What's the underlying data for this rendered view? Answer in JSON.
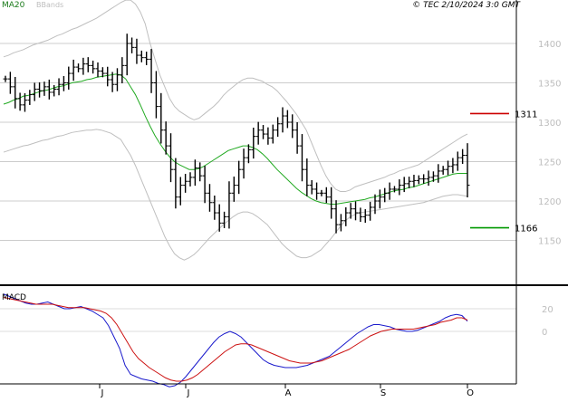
{
  "header": {
    "ma_label": "MA20",
    "bb_label": "BBands",
    "copyright": "© TEC 2/10/2024 3:0 GMT"
  },
  "colors": {
    "price_bar": "#000000",
    "ma20": "#22aa22",
    "bbands": "#bfbfbf",
    "grid": "#cccccc",
    "resistance": "#cc0000",
    "support": "#009900",
    "macd_line": "#1a1acc",
    "signal_line": "#cc1111"
  },
  "chart_data": [
    {
      "type": "ohlc",
      "y_ticks": [
        "1400",
        "1350",
        "1300",
        "1250",
        "1200",
        "1150"
      ],
      "ylim": [
        1100,
        1450
      ],
      "x_ticks": [
        "J",
        "J",
        "A",
        "S",
        "O"
      ],
      "levels": [
        {
          "label": "1311",
          "value": 1311,
          "color": "#cc0000"
        },
        {
          "label": "1166",
          "value": 1166,
          "color": "#009900"
        }
      ],
      "series": [
        {
          "name": "MA20",
          "values": [
            1323,
            1325,
            1328,
            1330,
            1333,
            1334,
            1336,
            1338,
            1340,
            1341,
            1343,
            1345,
            1346,
            1348,
            1350,
            1351,
            1352,
            1354,
            1355,
            1357,
            1358,
            1359,
            1360,
            1361,
            1360,
            1355,
            1345,
            1335,
            1322,
            1308,
            1295,
            1283,
            1273,
            1264,
            1256,
            1250,
            1246,
            1243,
            1240,
            1240,
            1241,
            1244,
            1248,
            1252,
            1256,
            1260,
            1264,
            1266,
            1268,
            1270,
            1270,
            1268,
            1265,
            1260,
            1254,
            1247,
            1240,
            1234,
            1228,
            1222,
            1216,
            1211,
            1207,
            1203,
            1200,
            1198,
            1197,
            1196,
            1196,
            1197,
            1198,
            1199,
            1200,
            1201,
            1202,
            1204,
            1205,
            1207,
            1209,
            1211,
            1213,
            1214,
            1215,
            1217,
            1218,
            1220,
            1222,
            1224,
            1226,
            1228,
            1230,
            1232,
            1234,
            1235,
            1235,
            1235
          ]
        },
        {
          "name": "BBands",
          "values": [
            {
              "upper": [
                1383,
                1385,
                1388,
                1390,
                1392,
                1395,
                1398,
                1400,
                1402,
                1404,
                1407,
                1410,
                1412,
                1415,
                1418,
                1420,
                1423,
                1426,
                1429,
                1432,
                1436,
                1440,
                1444,
                1448,
                1452,
                1455,
                1455,
                1450,
                1440,
                1425,
                1400,
                1380,
                1360,
                1345,
                1330,
                1320,
                1314,
                1310,
                1306,
                1303,
                1305,
                1310,
                1315,
                1320,
                1326,
                1334,
                1340,
                1345,
                1350,
                1354,
                1356,
                1356,
                1354,
                1352,
                1348,
                1345,
                1340,
                1333,
                1326,
                1318,
                1310,
                1300,
                1290,
                1275,
                1260,
                1245,
                1232,
                1222,
                1215,
                1212,
                1212,
                1214,
                1218,
                1220,
                1222,
                1224,
                1226,
                1228,
                1230,
                1233,
                1235,
                1238,
                1240,
                1242,
                1244,
                1246,
                1250,
                1254,
                1258,
                1262,
                1266,
                1270,
                1274,
                1278,
                1282,
                1285
              ]
            },
            {
              "lower": [
                1262,
                1264,
                1266,
                1268,
                1270,
                1271,
                1273,
                1275,
                1277,
                1278,
                1280,
                1282,
                1283,
                1285,
                1287,
                1288,
                1289,
                1290,
                1290,
                1291,
                1290,
                1288,
                1286,
                1282,
                1278,
                1268,
                1258,
                1245,
                1230,
                1215,
                1200,
                1185,
                1170,
                1155,
                1143,
                1133,
                1128,
                1125,
                1128,
                1132,
                1138,
                1145,
                1152,
                1158,
                1164,
                1170,
                1175,
                1180,
                1184,
                1186,
                1186,
                1184,
                1180,
                1175,
                1170,
                1162,
                1154,
                1146,
                1140,
                1135,
                1130,
                1128,
                1128,
                1130,
                1134,
                1138,
                1145,
                1152,
                1160,
                1168,
                1175,
                1180,
                1183,
                1185,
                1186,
                1187,
                1188,
                1189,
                1190,
                1191,
                1192,
                1193,
                1194,
                1195,
                1196,
                1197,
                1198,
                1200,
                1202,
                1204,
                1206,
                1207,
                1208,
                1208,
                1207,
                1206
              ]
            }
          ]
        },
        {
          "name": "Price",
          "values": [
            1355,
            1345,
            1330,
            1322,
            1328,
            1335,
            1342,
            1340,
            1345,
            1338,
            1342,
            1348,
            1350,
            1362,
            1370,
            1368,
            1374,
            1372,
            1368,
            1365,
            1362,
            1354,
            1348,
            1360,
            1372,
            1400,
            1395,
            1385,
            1382,
            1380,
            1350,
            1320,
            1290,
            1270,
            1240,
            1205,
            1220,
            1225,
            1230,
            1242,
            1232,
            1210,
            1198,
            1185,
            1172,
            1180,
            1210,
            1220,
            1240,
            1255,
            1265,
            1282,
            1290,
            1285,
            1280,
            1290,
            1298,
            1308,
            1300,
            1290,
            1270,
            1240,
            1220,
            1215,
            1210,
            1210,
            1205,
            1190,
            1170,
            1175,
            1185,
            1190,
            1185,
            1180,
            1182,
            1192,
            1200,
            1205,
            1210,
            1215,
            1215,
            1220,
            1222,
            1225,
            1226,
            1228,
            1228,
            1230,
            1232,
            1238,
            1240,
            1244,
            1246,
            1255,
            1258,
            1220
          ]
        }
      ]
    },
    {
      "type": "line",
      "title": "MACD",
      "y_ticks": [
        "20",
        "0"
      ],
      "series": [
        {
          "values": [
            33,
            31,
            29,
            27,
            25,
            24,
            24,
            25,
            26,
            24,
            22,
            20,
            20,
            21,
            22,
            20,
            18,
            15,
            12,
            5,
            -5,
            -15,
            -30,
            -38,
            -40,
            -42,
            -43,
            -44,
            -46,
            -47,
            -49,
            -48,
            -45,
            -40,
            -34,
            -28,
            -22,
            -16,
            -10,
            -5,
            -2,
            0,
            -2,
            -5,
            -10,
            -15,
            -20,
            -25,
            -28,
            -30,
            -31,
            -32,
            -32,
            -32,
            -31,
            -30,
            -28,
            -26,
            -24,
            -22,
            -18,
            -14,
            -10,
            -6,
            -2,
            1,
            4,
            6,
            6,
            5,
            4,
            2,
            1,
            0,
            0,
            1,
            3,
            5,
            7,
            9,
            12,
            14,
            15,
            14,
            9
          ]
        },
        {
          "values": [
            30,
            29,
            28,
            27,
            26,
            25,
            24,
            24,
            24,
            24,
            23,
            22,
            21,
            21,
            21,
            21,
            20,
            19,
            18,
            16,
            12,
            6,
            -2,
            -10,
            -18,
            -24,
            -28,
            -32,
            -35,
            -38,
            -41,
            -43,
            -44,
            -44,
            -43,
            -41,
            -38,
            -34,
            -30,
            -26,
            -22,
            -18,
            -15,
            -12,
            -11,
            -11,
            -12,
            -14,
            -16,
            -18,
            -20,
            -22,
            -24,
            -26,
            -27,
            -28,
            -28,
            -28,
            -27,
            -26,
            -24,
            -22,
            -20,
            -18,
            -16,
            -13,
            -10,
            -7,
            -4,
            -2,
            0,
            1,
            2,
            2,
            2,
            2,
            2,
            3,
            4,
            5,
            6,
            8,
            9,
            10,
            12,
            12,
            10
          ]
        }
      ]
    }
  ]
}
